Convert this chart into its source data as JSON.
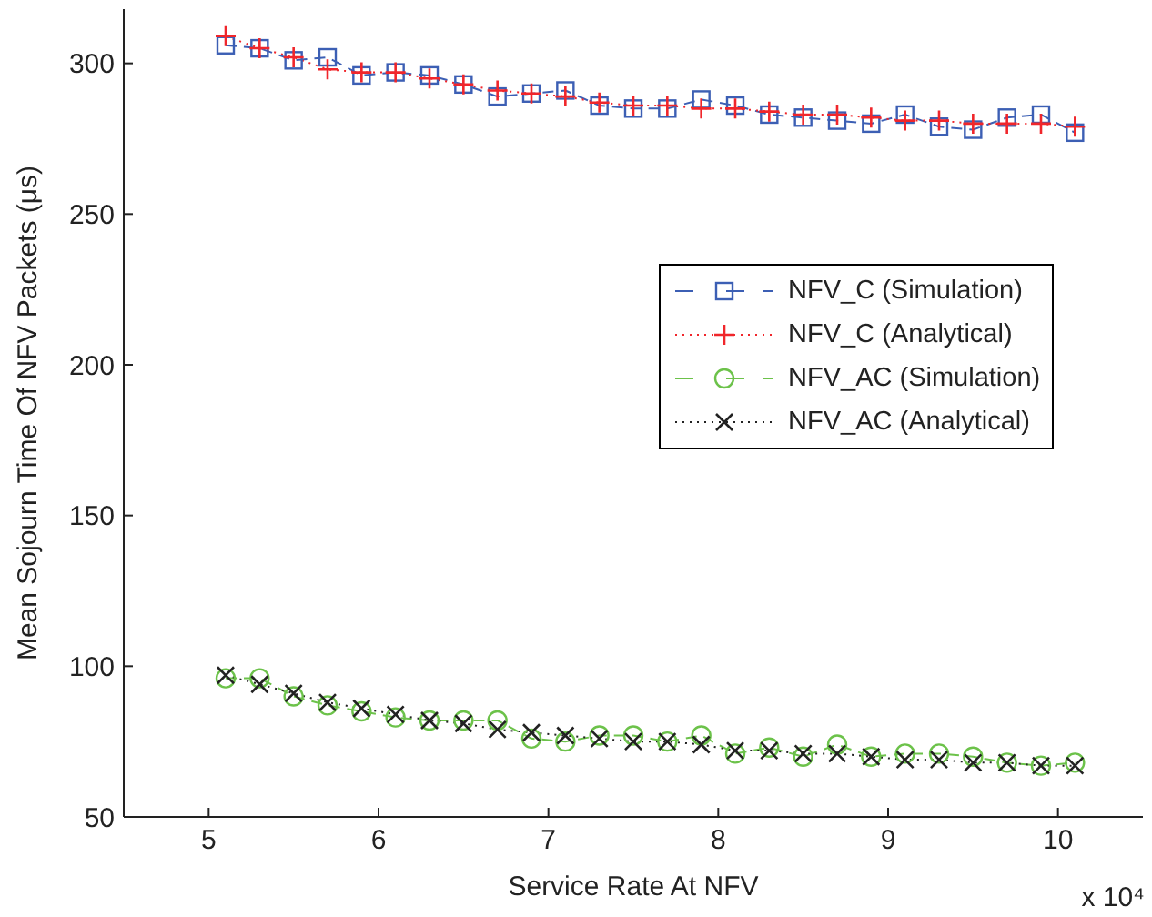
{
  "chart_data": {
    "type": "line",
    "xlabel": "Service Rate At NFV",
    "ylabel": "Mean Sojourn Time Of NFV Packets (μs)",
    "annotations": [
      "x 10⁴"
    ],
    "x": [
      5.1,
      5.3,
      5.5,
      5.7,
      5.9,
      6.1,
      6.3,
      6.5,
      6.7,
      6.9,
      7.1,
      7.3,
      7.5,
      7.7,
      7.9,
      8.1,
      8.3,
      8.5,
      8.7,
      8.9,
      9.1,
      9.3,
      9.5,
      9.7,
      9.9,
      10.1
    ],
    "series": [
      {
        "name": "NFV_C (Simulation)",
        "color": "#3c5fb4",
        "marker": "square",
        "line_style": "dashed",
        "values": [
          306,
          305,
          301,
          302,
          296,
          297,
          296,
          293,
          289,
          290,
          291,
          286,
          285,
          285,
          288,
          286,
          283,
          282,
          281,
          280,
          283,
          279,
          278,
          282,
          283,
          277
        ]
      },
      {
        "name": "NFV_C (Analytical)",
        "color": "#f0262b",
        "marker": "cross",
        "line_style": "dotted",
        "values": [
          309,
          305,
          302,
          298,
          297,
          297,
          295,
          293,
          291,
          290,
          289,
          287,
          286,
          286,
          285,
          285,
          284,
          283,
          283,
          282,
          281,
          281,
          280,
          280,
          280,
          279
        ]
      },
      {
        "name": "NFV_AC (Simulation)",
        "color": "#6cc24a",
        "marker": "circle",
        "line_style": "dashed",
        "values": [
          96,
          96,
          90,
          87,
          85,
          83,
          82,
          82,
          82,
          76,
          75,
          77,
          77,
          75,
          77,
          71,
          73,
          70,
          74,
          70,
          71,
          71,
          70,
          68,
          67,
          68
        ]
      },
      {
        "name": "NFV_AC (Analytical)",
        "color": "#222222",
        "marker": "x",
        "line_style": "dotted",
        "values": [
          97,
          94,
          91,
          88,
          86,
          84,
          82,
          81,
          79,
          78,
          77,
          76,
          75,
          75,
          74,
          72,
          72,
          71,
          71,
          70,
          69,
          69,
          68,
          68,
          67,
          67
        ]
      }
    ],
    "xlim": [
      4.5,
      10.5
    ],
    "xticks": [
      5,
      6,
      7,
      8,
      9,
      10
    ],
    "ylim": [
      50,
      318
    ],
    "yticks": [
      50,
      100,
      150,
      200,
      250,
      300
    ],
    "grid": false,
    "legend": "right"
  }
}
